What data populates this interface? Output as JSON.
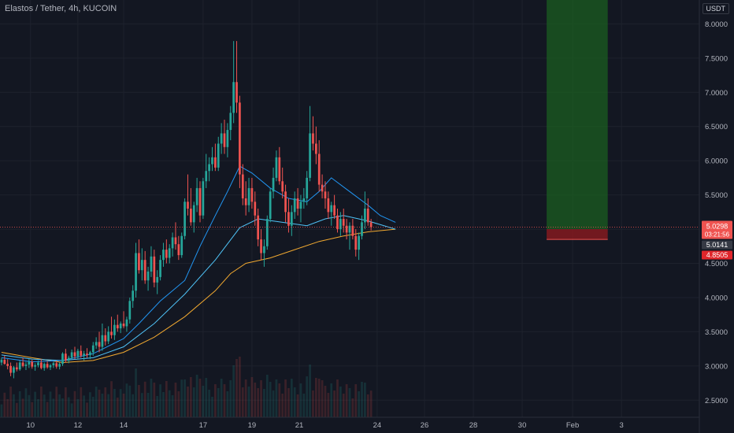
{
  "header": {
    "title": "Elastos / Tether, 4h, KUCOIN"
  },
  "currency_button": "USDT",
  "colors": {
    "background": "#131722",
    "up": "#26a69a",
    "down": "#ef5350",
    "ma_fast": "#2196f3",
    "ma_slow": "#f0a830",
    "target_zone": "#1b5e20",
    "stop_zone": "#8b1a1f"
  },
  "chart_data": {
    "type": "candlestick",
    "timeframe": "4h",
    "y_ticks": [
      2.5,
      3.0,
      3.5,
      4.0,
      4.5,
      5.0,
      5.5,
      6.0,
      6.5,
      7.0,
      7.5,
      8.0
    ],
    "y_tick_labels": [
      "2.5000",
      "3.0000",
      "3.5000",
      "4.0000",
      "4.5000",
      "5.0000",
      "5.5000",
      "6.0000",
      "6.5000",
      "7.0000",
      "7.5000",
      "8.0000"
    ],
    "ylim": [
      2.25,
      8.35
    ],
    "x_tick_labels": [
      "10",
      "12",
      "14",
      "17",
      "19",
      "21",
      "24",
      "26",
      "28",
      "30",
      "Feb",
      "3"
    ],
    "x_tick_slots": [
      9.5,
      25,
      40,
      66,
      82,
      97.5,
      123,
      138.5,
      154.5,
      170.5,
      187,
      203
    ],
    "slots_total": 229,
    "last_price": "5.0298",
    "countdown": "03:21:56",
    "bid_label": "5.0141",
    "stop_label": "4.8505",
    "position": {
      "entry": 5.0,
      "stop": 4.85,
      "target": 8.35,
      "start_slot": 179,
      "end_slot": 199
    },
    "candles": [
      [
        3.05,
        3.12,
        3.01,
        3.09
      ],
      [
        3.09,
        3.15,
        3.02,
        3.03
      ],
      [
        3.03,
        3.1,
        2.95,
        3.0
      ],
      [
        3.0,
        3.05,
        2.85,
        2.9
      ],
      [
        2.9,
        3.0,
        2.82,
        2.98
      ],
      [
        2.98,
        3.05,
        2.92,
        2.95
      ],
      [
        2.95,
        3.08,
        2.93,
        3.05
      ],
      [
        3.05,
        3.12,
        2.98,
        3.0
      ],
      [
        3.0,
        3.06,
        2.94,
        3.02
      ],
      [
        3.02,
        3.1,
        2.97,
        3.06
      ],
      [
        3.06,
        3.09,
        2.96,
        2.99
      ],
      [
        2.99,
        3.04,
        2.93,
        3.01
      ],
      [
        3.01,
        3.08,
        2.98,
        3.05
      ],
      [
        3.05,
        3.1,
        2.95,
        2.97
      ],
      [
        2.97,
        3.05,
        2.93,
        3.03
      ],
      [
        3.03,
        3.07,
        2.96,
        2.98
      ],
      [
        2.98,
        3.03,
        2.94,
        3.01
      ],
      [
        3.01,
        3.06,
        2.97,
        3.04
      ],
      [
        3.04,
        3.08,
        2.96,
        2.99
      ],
      [
        2.99,
        3.05,
        2.95,
        3.03
      ],
      [
        3.03,
        3.2,
        3.0,
        3.18
      ],
      [
        3.18,
        3.25,
        3.05,
        3.08
      ],
      [
        3.08,
        3.15,
        3.04,
        3.12
      ],
      [
        3.12,
        3.24,
        3.1,
        3.2
      ],
      [
        3.2,
        3.28,
        3.1,
        3.14
      ],
      [
        3.14,
        3.25,
        3.1,
        3.22
      ],
      [
        3.22,
        3.3,
        3.12,
        3.15
      ],
      [
        3.15,
        3.22,
        3.08,
        3.18
      ],
      [
        3.18,
        3.26,
        3.12,
        3.16
      ],
      [
        3.16,
        3.22,
        3.1,
        3.2
      ],
      [
        3.2,
        3.35,
        3.15,
        3.3
      ],
      [
        3.3,
        3.42,
        3.25,
        3.35
      ],
      [
        3.35,
        3.5,
        3.2,
        3.28
      ],
      [
        3.28,
        3.62,
        3.22,
        3.45
      ],
      [
        3.45,
        3.55,
        3.3,
        3.36
      ],
      [
        3.36,
        3.58,
        3.32,
        3.5
      ],
      [
        3.5,
        3.72,
        3.4,
        3.45
      ],
      [
        3.45,
        3.68,
        3.38,
        3.6
      ],
      [
        3.6,
        3.75,
        3.5,
        3.55
      ],
      [
        3.55,
        3.65,
        3.48,
        3.62
      ],
      [
        3.62,
        3.8,
        3.55,
        3.58
      ],
      [
        3.58,
        3.72,
        3.5,
        3.68
      ],
      [
        3.68,
        4.0,
        3.62,
        3.95
      ],
      [
        3.95,
        4.18,
        3.85,
        4.1
      ],
      [
        4.1,
        4.8,
        4.0,
        4.65
      ],
      [
        4.65,
        4.85,
        4.35,
        4.4
      ],
      [
        4.4,
        4.72,
        4.25,
        4.55
      ],
      [
        4.55,
        4.68,
        4.2,
        4.25
      ],
      [
        4.25,
        4.45,
        4.1,
        4.38
      ],
      [
        4.38,
        4.75,
        4.3,
        4.6
      ],
      [
        4.6,
        4.7,
        4.15,
        4.22
      ],
      [
        4.22,
        4.4,
        4.05,
        4.3
      ],
      [
        4.3,
        4.62,
        4.25,
        4.55
      ],
      [
        4.55,
        4.8,
        4.45,
        4.7
      ],
      [
        4.7,
        4.85,
        4.5,
        4.58
      ],
      [
        4.58,
        4.78,
        4.5,
        4.72
      ],
      [
        4.72,
        4.95,
        4.6,
        4.88
      ],
      [
        4.88,
        5.1,
        4.7,
        4.78
      ],
      [
        4.78,
        4.9,
        4.55,
        4.62
      ],
      [
        4.62,
        4.95,
        4.58,
        4.9
      ],
      [
        4.9,
        5.45,
        4.85,
        5.4
      ],
      [
        5.4,
        5.8,
        5.2,
        5.3
      ],
      [
        5.3,
        5.6,
        5.05,
        5.1
      ],
      [
        5.1,
        5.4,
        4.95,
        5.35
      ],
      [
        5.35,
        5.75,
        5.25,
        5.6
      ],
      [
        5.6,
        5.7,
        5.1,
        5.2
      ],
      [
        5.2,
        5.75,
        5.15,
        5.7
      ],
      [
        5.7,
        6.1,
        5.6,
        5.85
      ],
      [
        5.85,
        6.05,
        5.7,
        5.95
      ],
      [
        5.95,
        6.2,
        5.85,
        6.05
      ],
      [
        6.05,
        6.25,
        5.85,
        5.9
      ],
      [
        5.9,
        6.35,
        5.85,
        6.25
      ],
      [
        6.25,
        6.55,
        6.1,
        6.4
      ],
      [
        6.4,
        6.6,
        6.1,
        6.2
      ],
      [
        6.2,
        6.55,
        6.05,
        6.45
      ],
      [
        6.45,
        6.8,
        6.3,
        6.7
      ],
      [
        6.7,
        7.75,
        6.55,
        7.15
      ],
      [
        7.15,
        7.75,
        6.7,
        6.85
      ],
      [
        6.85,
        6.95,
        5.6,
        5.8
      ],
      [
        5.8,
        5.95,
        5.35,
        5.45
      ],
      [
        5.45,
        5.7,
        5.2,
        5.35
      ],
      [
        5.35,
        5.75,
        5.25,
        5.6
      ],
      [
        5.6,
        5.75,
        5.3,
        5.4
      ],
      [
        5.4,
        5.55,
        5.05,
        5.2
      ],
      [
        5.2,
        5.3,
        4.75,
        4.85
      ],
      [
        4.85,
        5.0,
        4.55,
        4.65
      ],
      [
        4.65,
        4.85,
        4.45,
        4.75
      ],
      [
        4.75,
        5.2,
        4.7,
        5.15
      ],
      [
        5.15,
        5.6,
        5.1,
        5.55
      ],
      [
        5.55,
        5.9,
        5.45,
        5.75
      ],
      [
        5.75,
        6.15,
        5.7,
        6.05
      ],
      [
        6.05,
        6.2,
        5.65,
        5.7
      ],
      [
        5.7,
        5.9,
        5.45,
        5.55
      ],
      [
        5.55,
        5.65,
        5.1,
        5.25
      ],
      [
        5.25,
        5.45,
        4.95,
        5.05
      ],
      [
        5.05,
        5.35,
        4.9,
        5.25
      ],
      [
        5.25,
        5.55,
        5.15,
        5.45
      ],
      [
        5.45,
        5.6,
        5.2,
        5.3
      ],
      [
        5.3,
        5.5,
        5.1,
        5.4
      ],
      [
        5.4,
        5.6,
        5.3,
        5.45
      ],
      [
        5.45,
        5.85,
        5.35,
        5.75
      ],
      [
        5.75,
        6.8,
        5.7,
        6.4
      ],
      [
        6.4,
        6.65,
        6.15,
        6.25
      ],
      [
        6.25,
        6.5,
        5.95,
        6.1
      ],
      [
        6.1,
        6.3,
        5.55,
        5.65
      ],
      [
        5.65,
        5.8,
        5.45,
        5.55
      ],
      [
        5.55,
        5.7,
        5.3,
        5.45
      ],
      [
        5.45,
        5.55,
        5.15,
        5.25
      ],
      [
        5.25,
        5.4,
        5.05,
        5.35
      ],
      [
        5.35,
        5.5,
        5.15,
        5.2
      ],
      [
        5.2,
        5.3,
        4.95,
        5.0
      ],
      [
        5.0,
        5.25,
        4.9,
        5.15
      ],
      [
        5.15,
        5.3,
        4.95,
        5.05
      ],
      [
        5.05,
        5.15,
        4.85,
        4.95
      ],
      [
        4.95,
        5.1,
        4.7,
        5.05
      ],
      [
        5.05,
        5.15,
        4.85,
        4.9
      ],
      [
        4.9,
        5.0,
        4.6,
        4.7
      ],
      [
        4.7,
        4.95,
        4.55,
        4.9
      ],
      [
        4.9,
        5.2,
        4.85,
        5.1
      ],
      [
        5.1,
        5.55,
        5.0,
        5.3
      ],
      [
        5.3,
        5.45,
        5.05,
        5.1
      ],
      [
        5.1,
        5.15,
        4.98,
        5.03
      ]
    ],
    "ma_fast": [
      [
        0,
        3.12
      ],
      [
        10,
        3.06
      ],
      [
        20,
        3.08
      ],
      [
        30,
        3.18
      ],
      [
        40,
        3.4
      ],
      [
        45,
        3.62
      ],
      [
        52,
        3.95
      ],
      [
        60,
        4.25
      ],
      [
        65,
        4.75
      ],
      [
        70,
        5.2
      ],
      [
        74,
        5.55
      ],
      [
        78,
        5.92
      ],
      [
        82,
        5.82
      ],
      [
        88,
        5.6
      ],
      [
        94,
        5.45
      ],
      [
        100,
        5.4
      ],
      [
        104,
        5.55
      ],
      [
        108,
        5.75
      ],
      [
        114,
        5.55
      ],
      [
        120,
        5.35
      ],
      [
        124,
        5.2
      ],
      [
        129,
        5.1
      ]
    ],
    "ma_mid": [
      [
        0,
        3.16
      ],
      [
        10,
        3.1
      ],
      [
        20,
        3.08
      ],
      [
        30,
        3.12
      ],
      [
        40,
        3.28
      ],
      [
        50,
        3.62
      ],
      [
        60,
        4.05
      ],
      [
        70,
        4.55
      ],
      [
        78,
        5.02
      ],
      [
        84,
        5.15
      ],
      [
        92,
        5.1
      ],
      [
        100,
        5.05
      ],
      [
        106,
        5.15
      ],
      [
        112,
        5.2
      ],
      [
        120,
        5.12
      ],
      [
        129,
        5.0
      ]
    ],
    "ma_slow": [
      [
        0,
        3.2
      ],
      [
        10,
        3.12
      ],
      [
        20,
        3.05
      ],
      [
        30,
        3.08
      ],
      [
        40,
        3.2
      ],
      [
        50,
        3.42
      ],
      [
        60,
        3.72
      ],
      [
        70,
        4.1
      ],
      [
        75,
        4.35
      ],
      [
        80,
        4.5
      ],
      [
        88,
        4.58
      ],
      [
        96,
        4.7
      ],
      [
        104,
        4.82
      ],
      [
        112,
        4.9
      ],
      [
        120,
        4.96
      ],
      [
        129,
        5.0
      ]
    ]
  }
}
